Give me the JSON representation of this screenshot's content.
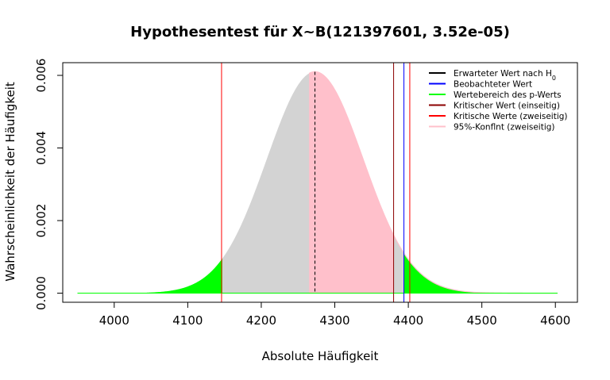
{
  "chart_data": {
    "type": "area",
    "title": "Hypothesentest für X~B(121397601, 3.52e-05)",
    "xlabel": "Absolute Häufigkeit",
    "ylabel": "Wahrscheinlichkeit der Häufigkeit",
    "xlim": [
      3930,
      4630
    ],
    "ylim": [
      -0.00025,
      0.00635
    ],
    "x_ticks": [
      4000,
      4100,
      4200,
      4300,
      4400,
      4500,
      4600
    ],
    "x_tick_labels": [
      "4000",
      "4100",
      "4200",
      "4300",
      "4400",
      "4500",
      "4600"
    ],
    "y_ticks": [
      0,
      0.002,
      0.004,
      0.006
    ],
    "y_tick_labels": [
      "0.000",
      "0.002",
      "0.004",
      "0.006"
    ],
    "distribution": {
      "x_range": [
        3950,
        4603
      ],
      "mean": 4273,
      "sd": 65.4,
      "peak": 0.0061
    },
    "p_value_region_low": [
      3950,
      4147
    ],
    "p_value_region_high": [
      4394,
      4603
    ],
    "confidence_interval": [
      4265,
      4380
    ],
    "lines": {
      "expected_value": 4273,
      "observed_value": 4394,
      "critical_one_sided": 4380,
      "critical_two_sided": [
        4146,
        4402
      ]
    },
    "colors": {
      "base_fill": "#d3d3d3",
      "p_value": "#00ff00",
      "confidence": "#ffc0cb",
      "expected": "#000000",
      "observed": "#0000ff",
      "critical_one_sided": "#8b0000",
      "critical_two_sided": "#ff0000"
    },
    "legend": {
      "position": "top-right",
      "entries": [
        {
          "label": "Erwarteter Wert nach H",
          "subscript": "0",
          "color": "#000000"
        },
        {
          "label": "Beobachteter Wert",
          "color": "#0000ff"
        },
        {
          "label": "Wertebereich des p-Werts",
          "color": "#00ff00"
        },
        {
          "label": "Kritischer Wert (einseitig)",
          "color": "#8b0000"
        },
        {
          "label": "Kritische Werte (zweiseitig)",
          "color": "#ff0000"
        },
        {
          "label": "95%-Konflnt (zweiseitig)",
          "color": "#ffc0cb"
        }
      ]
    }
  }
}
